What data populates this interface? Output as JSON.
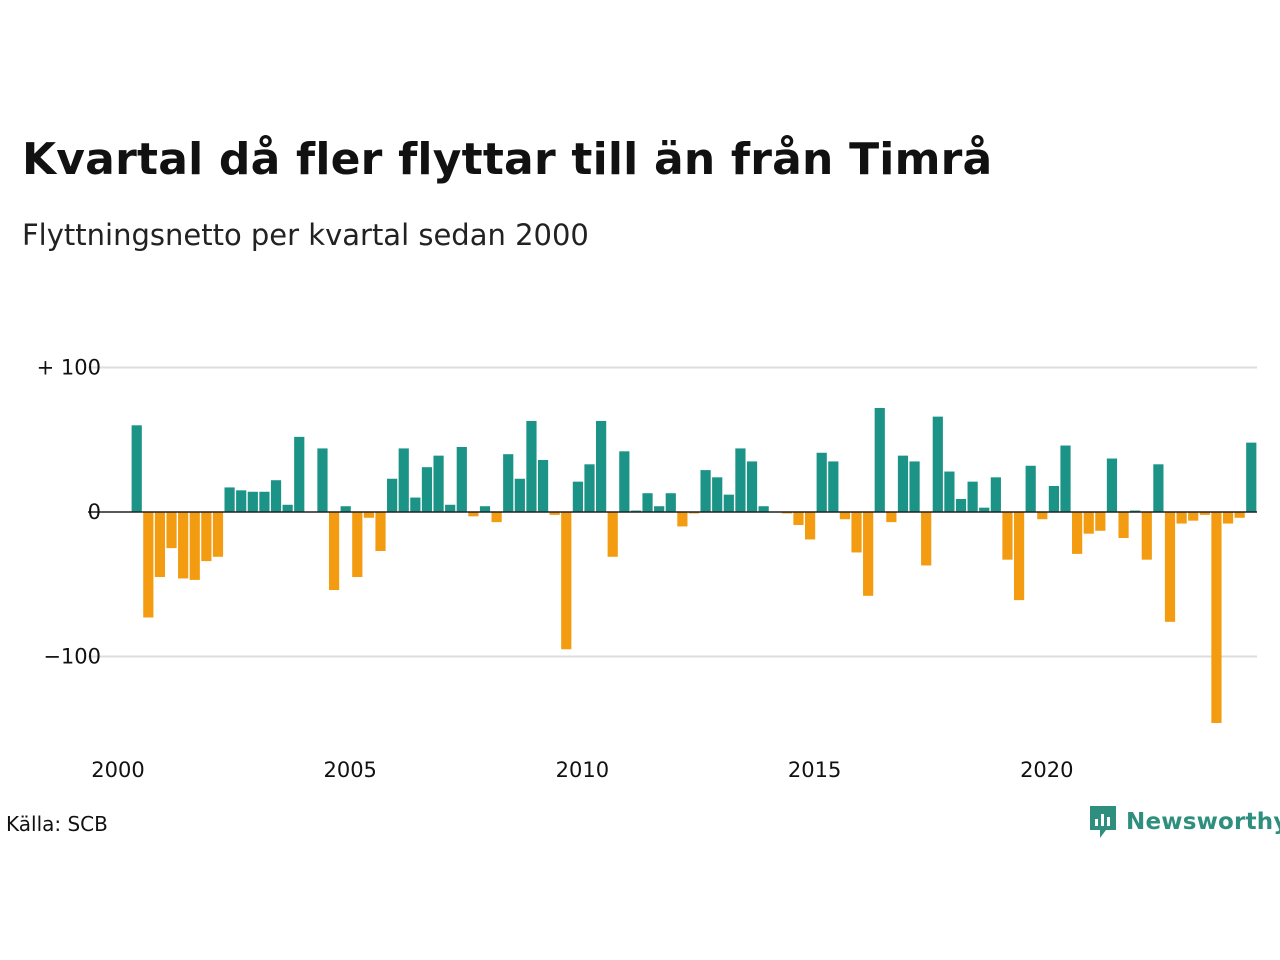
{
  "chart_data": {
    "type": "bar",
    "title": "Kvartal då fler flyttar till än från Timrå",
    "subtitle": "Flyttningsnetto per kvartal sedan 2000",
    "xlabel": "",
    "ylabel": "",
    "ylim": [
      -160,
      100
    ],
    "y_ticks": [
      {
        "value": 100,
        "label": "+ 100"
      },
      {
        "value": 0,
        "label": "0"
      },
      {
        "value": -100,
        "label": "−100"
      }
    ],
    "x_ticks": [
      "2000",
      "2005",
      "2010",
      "2015",
      "2020"
    ],
    "start_year": 2000,
    "grid": true,
    "colors": {
      "positive": "#1b9387",
      "negative": "#f39c12",
      "grid": "#dddddd"
    },
    "values": [
      0,
      60,
      -73,
      -45,
      -25,
      -46,
      -47,
      -34,
      -31,
      17,
      15,
      14,
      14,
      22,
      5,
      52,
      0,
      44,
      -54,
      4,
      -45,
      -4,
      -27,
      23,
      44,
      10,
      31,
      39,
      5,
      45,
      -3,
      4,
      -7,
      40,
      23,
      63,
      36,
      -2,
      -95,
      21,
      33,
      63,
      -31,
      42,
      1,
      13,
      4,
      13,
      -10,
      -1,
      29,
      24,
      12,
      44,
      35,
      4,
      0,
      -1,
      -9,
      -19,
      41,
      35,
      -5,
      -28,
      -58,
      72,
      -7,
      39,
      35,
      -37,
      66,
      28,
      9,
      21,
      3,
      24,
      -33,
      -61,
      32,
      -5,
      18,
      46,
      -29,
      -15,
      -13,
      37,
      -18,
      1,
      -33,
      33,
      -76,
      -8,
      -6,
      -2,
      -146,
      -8,
      -4,
      48
    ]
  },
  "footer": {
    "source": "Källa: SCB",
    "brand": "Newsworthy",
    "brand_icon": "bar-chart-speech-bubble-icon"
  }
}
